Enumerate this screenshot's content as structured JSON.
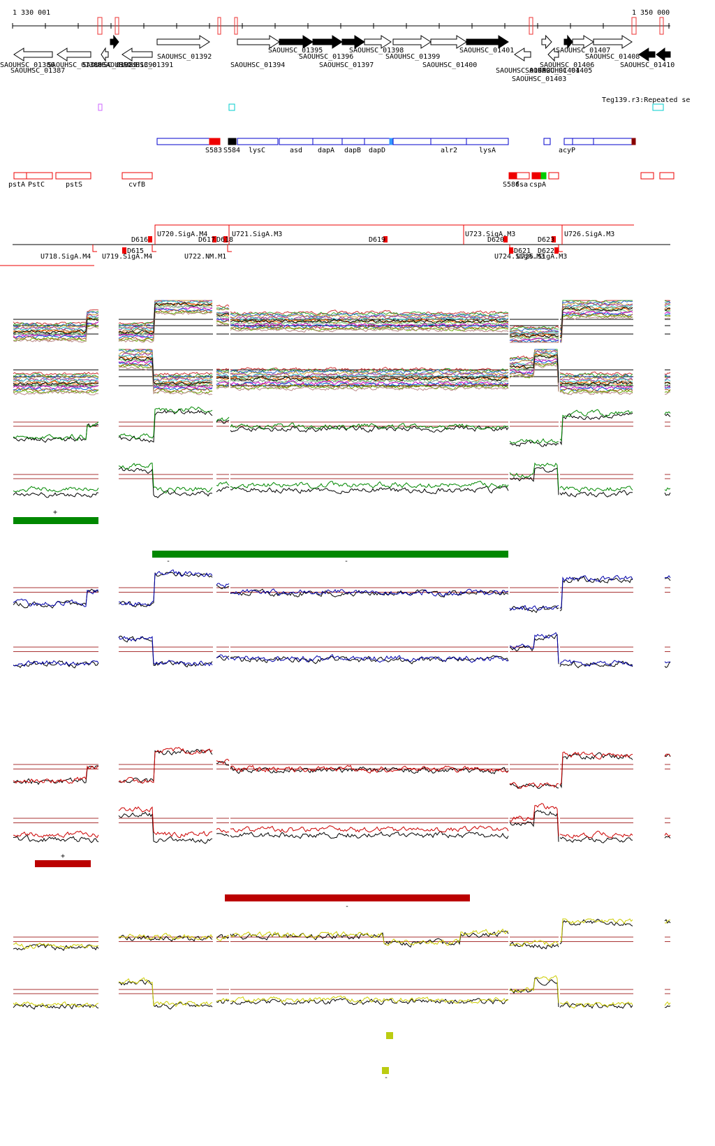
{
  "ruler": {
    "start": "1 330 001",
    "end": "1 350 000"
  },
  "genes": [
    "SAOUHSC_01386",
    "SAOUHSC_01387",
    "SAOUHSC_01388",
    "SAOUHSC_01389",
    "SAOUHSC_01390",
    "SAOUHSC_01391",
    "SAOUHSC_01392",
    "SAOUHSC_01394",
    "SAOUHSC_01395",
    "SAOUHSC_01396",
    "SAOUHSC_01397",
    "SAOUHSC_01398",
    "SAOUHSC_01399",
    "SAOUHSC_01400",
    "SAOUHSC_01401",
    "SAOUHSC_01402",
    "SAOUHSC_01403",
    "SAOUHSC_01404",
    "SAOUHSC_01405",
    "SAOUHSC_01406",
    "SAOUHSC_01407",
    "SAOUHSC_01408",
    "SAOUHSC_01410"
  ],
  "repeat_annotation": "Teg139.r3:Repeated se",
  "features": [
    "S583",
    "S584",
    "lysC",
    "asd",
    "dapA",
    "dapB",
    "dapD",
    "alr2",
    "lysA",
    "acyP"
  ],
  "rna_features": [
    "pstA",
    "PstC",
    "pstS",
    "cvfB",
    "S586",
    "fsa",
    "cspA"
  ],
  "transcription": [
    "U720.SigA.M4",
    "D616",
    "D617",
    "D618",
    "U721.SigA.M3",
    "D619",
    "U723.SigA.M3",
    "D620",
    "D623",
    "U726.SigA.M3",
    "U718.SigA.M4",
    "D615",
    "U719.SigA.M4",
    "U722.NM.M1",
    "D621",
    "U724.SigA.M3",
    "D622",
    "U725.SigA.M3"
  ],
  "strand_labels": [
    "+",
    "-",
    "-",
    "+",
    "-",
    "-"
  ]
}
